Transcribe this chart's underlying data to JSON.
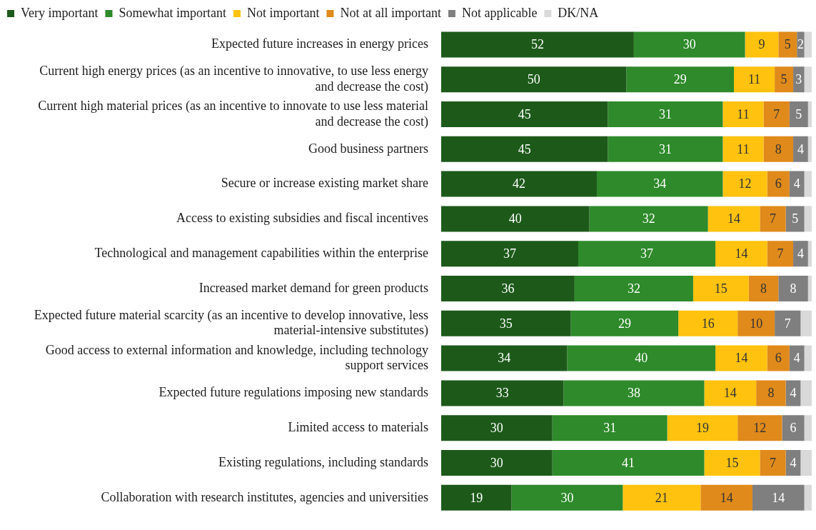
{
  "chart_data": {
    "type": "bar",
    "orientation": "horizontal",
    "stacked": true,
    "legend": "top",
    "tick_labels": "y",
    "xlim": [
      0,
      100
    ],
    "categories": [
      "Expected future increases in energy prices",
      "Current high energy prices (as an incentive to innovative, to use less energy and decrease the cost)",
      "Current high material prices (as an incentive to innovate to use less material and decrease the cost)",
      "Good business partners",
      "Secure or increase existing market share",
      "Access to existing subsidies and fiscal incentives",
      "Technological and management capabilities within the enterprise",
      "Increased market demand for green products",
      "Expected future material scarcity (as an incentive to develop innovative, less material-intensive substitutes)",
      "Good access to external information and knowledge, including technology support services",
      "Expected future regulations imposing new standards",
      "Limited access to materials",
      "Existing regulations, including standards",
      "Collaboration with research institutes, agencies and universities"
    ],
    "series": [
      {
        "name": "Very important",
        "color": "#1d5a1a",
        "values": [
          52,
          50,
          45,
          45,
          42,
          40,
          37,
          36,
          35,
          34,
          33,
          30,
          30,
          19
        ],
        "value_labels": [
          "52",
          "50",
          "45",
          "45",
          "42",
          "40",
          "37",
          "36",
          "35",
          "34",
          "33",
          "30",
          "30",
          "19"
        ]
      },
      {
        "name": "Somewhat important",
        "color": "#2e8a2a",
        "values": [
          30,
          29,
          31,
          31,
          34,
          32,
          37,
          32,
          29,
          40,
          38,
          31,
          41,
          30
        ],
        "value_labels": [
          "30",
          "29",
          "31",
          "31",
          "34",
          "32",
          "37",
          "32",
          "29",
          "40",
          "38",
          "31",
          "41",
          "30"
        ]
      },
      {
        "name": "Not important",
        "color": "#fec20f",
        "values": [
          9,
          11,
          11,
          11,
          12,
          14,
          14,
          15,
          16,
          14,
          14,
          19,
          15,
          21
        ],
        "value_labels": [
          "9",
          "11",
          "11",
          "11",
          "12",
          "14",
          "14",
          "15",
          "16",
          "14",
          "14",
          "19",
          "15",
          "21"
        ]
      },
      {
        "name": "Not at all important",
        "color": "#df8a1b",
        "values": [
          5,
          5,
          7,
          8,
          6,
          7,
          7,
          8,
          10,
          6,
          8,
          12,
          7,
          14
        ],
        "value_labels": [
          "5",
          "5",
          "7",
          "8",
          "6",
          "7",
          "7",
          "8",
          "10",
          "6",
          "8",
          "12",
          "7",
          "14"
        ]
      },
      {
        "name": "Not applicable",
        "color": "#7f7f7f",
        "values": [
          2,
          3,
          5,
          4,
          4,
          5,
          4,
          8,
          7,
          4,
          4,
          6,
          4,
          14
        ],
        "value_labels": [
          "2",
          "3",
          "5",
          "4",
          "4",
          "5",
          "4",
          "8",
          "7",
          "4",
          "4",
          "6",
          "4",
          "14"
        ]
      },
      {
        "name": "DK/NA",
        "color": "#d9d9d9",
        "values": [
          2,
          2,
          1,
          1,
          2,
          2,
          1,
          1,
          3,
          2,
          3,
          2,
          3,
          2
        ],
        "value_labels": [
          null,
          null,
          null,
          null,
          null,
          null,
          null,
          null,
          null,
          null,
          null,
          null,
          null,
          null
        ]
      }
    ]
  }
}
